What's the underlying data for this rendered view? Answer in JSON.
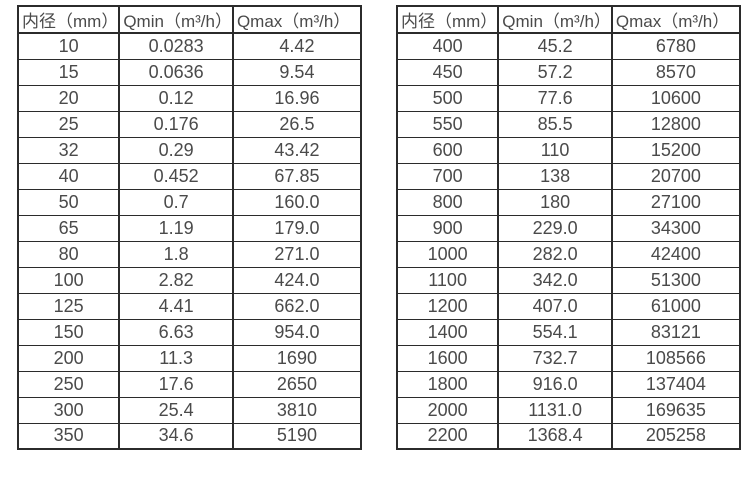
{
  "page": {
    "background": "#ffffff",
    "text_color": "#4a4a4a",
    "border_color": "#2b2b2b"
  },
  "tables": [
    {
      "name": "flow-rate-table-small-diameters",
      "headers": [
        "内径（mm）",
        "Qmin（m³/h）",
        "Qmax（m³/h）"
      ],
      "rows": [
        [
          "10",
          "0.0283",
          "4.42"
        ],
        [
          "15",
          "0.0636",
          "9.54"
        ],
        [
          "20",
          "0.12",
          "16.96"
        ],
        [
          "25",
          "0.176",
          "26.5"
        ],
        [
          "32",
          "0.29",
          "43.42"
        ],
        [
          "40",
          "0.452",
          "67.85"
        ],
        [
          "50",
          "0.7",
          "160.0"
        ],
        [
          "65",
          "1.19",
          "179.0"
        ],
        [
          "80",
          "1.8",
          "271.0"
        ],
        [
          "100",
          "2.82",
          "424.0"
        ],
        [
          "125",
          "4.41",
          "662.0"
        ],
        [
          "150",
          "6.63",
          "954.0"
        ],
        [
          "200",
          "11.3",
          "1690"
        ],
        [
          "250",
          "17.6",
          "2650"
        ],
        [
          "300",
          "25.4",
          "3810"
        ],
        [
          "350",
          "34.6",
          "5190"
        ]
      ]
    },
    {
      "name": "flow-rate-table-large-diameters",
      "headers": [
        "内径（mm）",
        "Qmin（m³/h）",
        "Qmax（m³/h）"
      ],
      "rows": [
        [
          "400",
          "45.2",
          "6780"
        ],
        [
          "450",
          "57.2",
          "8570"
        ],
        [
          "500",
          "77.6",
          "10600"
        ],
        [
          "550",
          "85.5",
          "12800"
        ],
        [
          "600",
          "110",
          "15200"
        ],
        [
          "700",
          "138",
          "20700"
        ],
        [
          "800",
          "180",
          "27100"
        ],
        [
          "900",
          "229.0",
          "34300"
        ],
        [
          "1000",
          "282.0",
          "42400"
        ],
        [
          "1100",
          "342.0",
          "51300"
        ],
        [
          "1200",
          "407.0",
          "61000"
        ],
        [
          "1400",
          "554.1",
          "83121"
        ],
        [
          "1600",
          "732.7",
          "108566"
        ],
        [
          "1800",
          "916.0",
          "137404"
        ],
        [
          "2000",
          "1131.0",
          "169635"
        ],
        [
          "2200",
          "1368.4",
          "205258"
        ]
      ]
    }
  ]
}
